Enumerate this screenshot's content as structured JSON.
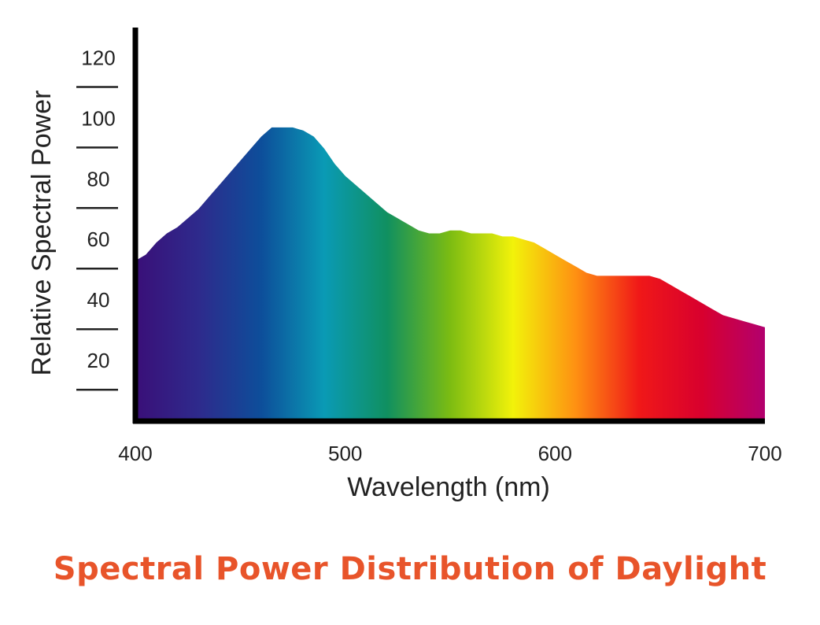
{
  "chart_data": {
    "type": "area",
    "title": "Spectral Power Distribution of Daylight",
    "xlabel": "Wavelength (nm)",
    "ylabel": "Relative Spectral Power",
    "xlim": [
      400,
      700
    ],
    "ylim": [
      0,
      130
    ],
    "xticks": [
      400,
      500,
      600,
      700
    ],
    "yticks": [
      20,
      40,
      60,
      80,
      100,
      120
    ],
    "x": [
      400,
      405,
      410,
      415,
      420,
      425,
      430,
      435,
      440,
      445,
      450,
      455,
      460,
      465,
      470,
      475,
      480,
      485,
      490,
      495,
      500,
      505,
      510,
      515,
      520,
      525,
      530,
      535,
      540,
      545,
      550,
      555,
      560,
      565,
      570,
      575,
      580,
      585,
      590,
      595,
      600,
      605,
      610,
      615,
      620,
      625,
      630,
      635,
      640,
      645,
      650,
      655,
      660,
      665,
      670,
      675,
      680,
      685,
      690,
      695,
      700
    ],
    "y": [
      53,
      55,
      59,
      62,
      64,
      67,
      70,
      74,
      78,
      82,
      86,
      90,
      94,
      97,
      97,
      97,
      96,
      94,
      90,
      85,
      81,
      78,
      75,
      72,
      69,
      67,
      65,
      63,
      62,
      62,
      63,
      63,
      62,
      62,
      62,
      61,
      61,
      60,
      59,
      57,
      55,
      53,
      51,
      49,
      48,
      48,
      48,
      48,
      48,
      48,
      47,
      45,
      43,
      41,
      39,
      37,
      35,
      34,
      33,
      32,
      31
    ],
    "grid": false,
    "fill": "visible-spectrum-gradient"
  },
  "colors": {
    "caption": "#e8542a",
    "axis": "#000000",
    "text": "#222222",
    "spectrum_stops": [
      "#3a0f78",
      "#2e2a8c",
      "#0d4e9a",
      "#0a9ab5",
      "#109060",
      "#7cbc12",
      "#f2f20a",
      "#fe9012",
      "#f01818",
      "#d8002e",
      "#b2006e"
    ]
  }
}
